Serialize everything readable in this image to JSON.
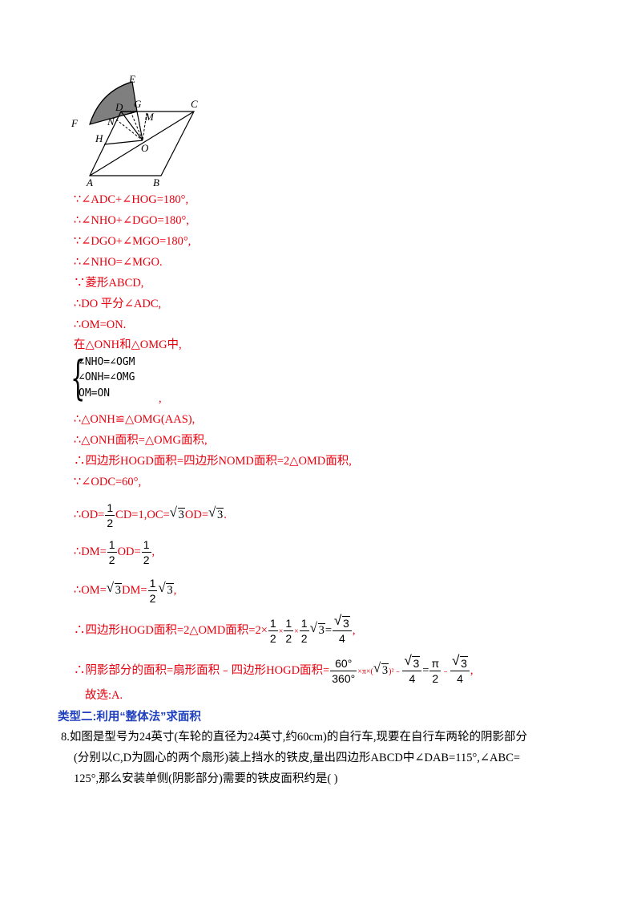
{
  "figure": {
    "labels": {
      "E": "E",
      "D": "D",
      "G": "G",
      "C": "C",
      "F": "F",
      "N": "N",
      "M": "M",
      "H": "H",
      "O": "O",
      "A": "A",
      "B": "B"
    }
  },
  "lines": {
    "l1": "∵∠ADC+∠HOG=180°,",
    "l2": "∴∠NHO+∠DGO=180°,",
    "l3": "∵∠DGO+∠MGO=180°,",
    "l4": "∴∠NHO=∠MGO.",
    "l5": "∵菱形ABCD,",
    "l6": "∴DO 平分∠ADC,",
    "l7": "∴OM=ON.",
    "l8": "在△ONH和△OMG中,",
    "l9_comma": ",",
    "l10": "∴△ONH≌△OMG(AAS),",
    "l11": "∴△ONH面积=△OMG面积,",
    "l12": "∴四边形HOGD面积=四边形NOMD面积=2△OMD面积,",
    "l13": "∵∠ODC=60°,",
    "l18": "故选:A."
  },
  "system": {
    "eq1": "∠NHO=∠OGM",
    "eq2": "∠ONH=∠OMG",
    "eq3": "OM=ON"
  },
  "math": {
    "od_prefix": "∴OD=",
    "half": "1",
    "two": "2",
    "od_mid": "CD=1,OC=",
    "three": "3",
    "od_mid2": "OD=",
    "od_end": ".",
    "dm_prefix": "∴DM=",
    "dm_mid": "OD=",
    "dm_end": ",",
    "om_prefix": "∴OM=",
    "om_mid": "DM=",
    "om_end": ",",
    "area_prefix": "∴四边形HOGD面积=2△OMD面积=2×",
    "times": "×",
    "eq": "=",
    "four": "4",
    "area_end": ",",
    "shade_prefix": "∴阴影部分的面积=扇形面积﹣四边形HOGD面积=",
    "sixty": "60°",
    "three_sixty": "360°",
    "pi_times": "×π×(",
    "close_sq": ")²﹣",
    "eq2": "=",
    "pi": "π",
    "minus": "﹣",
    "shade_end": ","
  },
  "heading": "类型二:利用“整体法”求面积",
  "problem": {
    "line1": "8.如图是型号为24英寸(车轮的直径为24英寸,约60cm)的自行车,现要在自行车两轮的阴影部分",
    "line2": "(分别以C,D为圆心的两个扇形)装上挡水的铁皮,量出四边形ABCD中∠DAB=115°,∠ABC=",
    "line3": "125°,那么安装单侧(阴影部分)需要的铁皮面积约是(        )"
  }
}
